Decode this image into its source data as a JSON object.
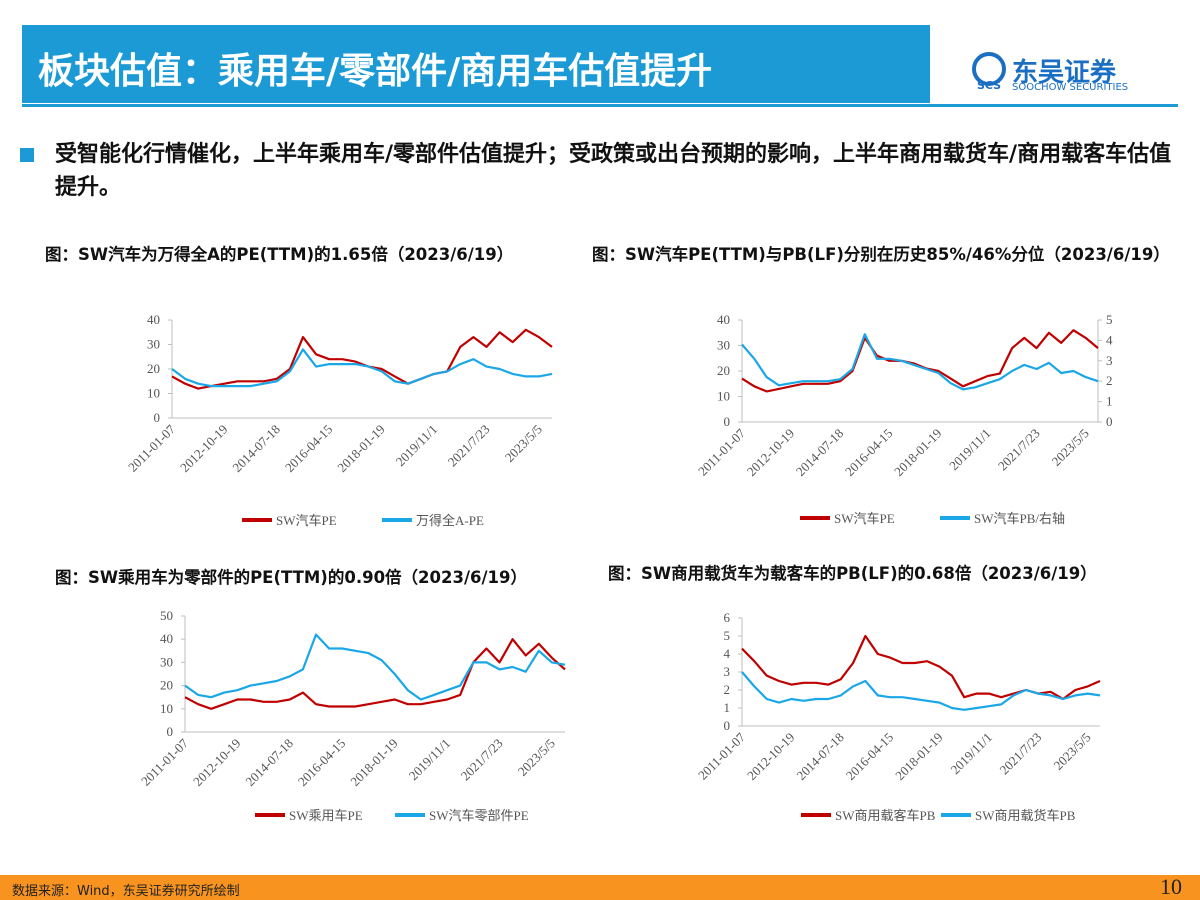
{
  "header": {
    "title": "板块估值：乘用车/零部件/商用车估值提升",
    "logo_name": "东吴证券",
    "logo_sub": "SOOCHOW SECURITIES",
    "logo_mark": "SCS"
  },
  "bullet": "受智能化行情催化，上半年乘用车/零部件估值提升；受政策或出台预期的影响，上半年商用载货车/商用载客车估值提升。",
  "footer": {
    "source": "数据来源：Wind，东吴证券研究所绘制",
    "page": "10"
  },
  "chart_data": [
    {
      "type": "line",
      "title": "图：SW汽车为万得全A的PE(TTM)的1.65倍（2023/6/19）",
      "categories": [
        "2011-01-07",
        null,
        null,
        null,
        "2012-10-19",
        null,
        null,
        null,
        "2014-07-18",
        null,
        null,
        null,
        "2016-04-15",
        null,
        null,
        null,
        "2018-01-19",
        null,
        null,
        null,
        "2019/11/1",
        null,
        null,
        null,
        "2021/7/23",
        null,
        null,
        null,
        "2023/5/5",
        null
      ],
      "ylim": [
        0,
        40
      ],
      "yticks": [
        0,
        10,
        20,
        30,
        40
      ],
      "series": [
        {
          "name": "SW汽车PE",
          "color": "#c00000",
          "values": [
            17,
            14,
            12,
            13,
            14,
            15,
            15,
            15,
            16,
            20,
            33,
            26,
            24,
            24,
            23,
            21,
            20,
            17,
            14,
            16,
            18,
            19,
            29,
            33,
            29,
            35,
            31,
            36,
            33,
            29
          ]
        },
        {
          "name": "万得全A-PE",
          "color": "#1aa7e8",
          "values": [
            20,
            16,
            14,
            13,
            13,
            13,
            13,
            14,
            15,
            19,
            28,
            21,
            22,
            22,
            22,
            21,
            19,
            15,
            14,
            16,
            18,
            19,
            22,
            24,
            21,
            20,
            18,
            17,
            17,
            18
          ]
        }
      ]
    },
    {
      "type": "line",
      "title": "图：SW汽车PE(TTM)与PB(LF)分别在历史85%/46%分位（2023/6/19）",
      "categories": [
        "2011-01-07",
        null,
        null,
        null,
        "2012-10-19",
        null,
        null,
        null,
        "2014-07-18",
        null,
        null,
        null,
        "2016-04-15",
        null,
        null,
        null,
        "2018-01-19",
        null,
        null,
        null,
        "2019/11/1",
        null,
        null,
        null,
        "2021/7/23",
        null,
        null,
        null,
        "2023/5/5",
        null
      ],
      "ylim": [
        0,
        40
      ],
      "yticks": [
        0,
        10,
        20,
        30,
        40
      ],
      "y2lim": [
        0,
        5
      ],
      "y2ticks": [
        0,
        1,
        2,
        3,
        4,
        5
      ],
      "series": [
        {
          "name": "SW汽车PE",
          "color": "#c00000",
          "values": [
            17,
            14,
            12,
            13,
            14,
            15,
            15,
            15,
            16,
            20,
            33,
            26,
            24,
            24,
            23,
            21,
            20,
            17,
            14,
            16,
            18,
            19,
            29,
            33,
            29,
            35,
            31,
            36,
            33,
            29
          ]
        },
        {
          "name": "SW汽车PB/右轴",
          "color": "#1aa7e8",
          "axis": "y2",
          "values": [
            3.8,
            3.1,
            2.2,
            1.8,
            1.9,
            2.0,
            2.0,
            2.0,
            2.1,
            2.6,
            4.3,
            3.1,
            3.1,
            3.0,
            2.8,
            2.6,
            2.4,
            1.9,
            1.6,
            1.7,
            1.9,
            2.1,
            2.5,
            2.8,
            2.6,
            2.9,
            2.4,
            2.5,
            2.2,
            2.0
          ]
        }
      ]
    },
    {
      "type": "line",
      "title": "图：SW乘用车为零部件的PE(TTM)的0.90倍（2023/6/19）",
      "categories": [
        "2011-01-07",
        null,
        null,
        null,
        "2012-10-19",
        null,
        null,
        null,
        "2014-07-18",
        null,
        null,
        null,
        "2016-04-15",
        null,
        null,
        null,
        "2018-01-19",
        null,
        null,
        null,
        "2019/11/1",
        null,
        null,
        null,
        "2021/7/23",
        null,
        null,
        null,
        "2023/5/5",
        null
      ],
      "ylim": [
        0,
        50
      ],
      "yticks": [
        0,
        10,
        20,
        30,
        40,
        50
      ],
      "series": [
        {
          "name": "SW乘用车PE",
          "color": "#c00000",
          "values": [
            15,
            12,
            10,
            12,
            14,
            14,
            13,
            13,
            14,
            17,
            12,
            11,
            11,
            11,
            12,
            13,
            14,
            12,
            12,
            13,
            14,
            16,
            30,
            36,
            30,
            40,
            33,
            38,
            32,
            27
          ]
        },
        {
          "name": "SW汽车零部件PE",
          "color": "#1aa7e8",
          "values": [
            20,
            16,
            15,
            17,
            18,
            20,
            21,
            22,
            24,
            27,
            42,
            36,
            36,
            35,
            34,
            31,
            25,
            18,
            14,
            16,
            18,
            20,
            30,
            30,
            27,
            28,
            26,
            35,
            30,
            29
          ]
        }
      ]
    },
    {
      "type": "line",
      "title": "图：SW商用载货车为载客车的PB(LF)的0.68倍（2023/6/19）",
      "categories": [
        "2011-01-07",
        null,
        null,
        null,
        "2012-10-19",
        null,
        null,
        null,
        "2014-07-18",
        null,
        null,
        null,
        "2016-04-15",
        null,
        null,
        null,
        "2018-01-19",
        null,
        null,
        null,
        "2019/11/1",
        null,
        null,
        null,
        "2021/7/23",
        null,
        null,
        null,
        "2023/5/5",
        null
      ],
      "ylim": [
        0,
        6
      ],
      "yticks": [
        0,
        1,
        2,
        3,
        4,
        5,
        6
      ],
      "series": [
        {
          "name": "SW商用载客车PB",
          "color": "#c00000",
          "values": [
            4.3,
            3.6,
            2.8,
            2.5,
            2.3,
            2.4,
            2.4,
            2.3,
            2.6,
            3.5,
            5.0,
            4.0,
            3.8,
            3.5,
            3.5,
            3.6,
            3.3,
            2.8,
            1.6,
            1.8,
            1.8,
            1.6,
            1.8,
            2.0,
            1.8,
            1.9,
            1.5,
            2.0,
            2.2,
            2.5
          ]
        },
        {
          "name": "SW商用载货车PB",
          "color": "#1aa7e8",
          "values": [
            3.0,
            2.2,
            1.5,
            1.3,
            1.5,
            1.4,
            1.5,
            1.5,
            1.7,
            2.2,
            2.5,
            1.7,
            1.6,
            1.6,
            1.5,
            1.4,
            1.3,
            1.0,
            0.9,
            1.0,
            1.1,
            1.2,
            1.7,
            2.0,
            1.8,
            1.7,
            1.5,
            1.7,
            1.8,
            1.7
          ]
        }
      ]
    }
  ]
}
